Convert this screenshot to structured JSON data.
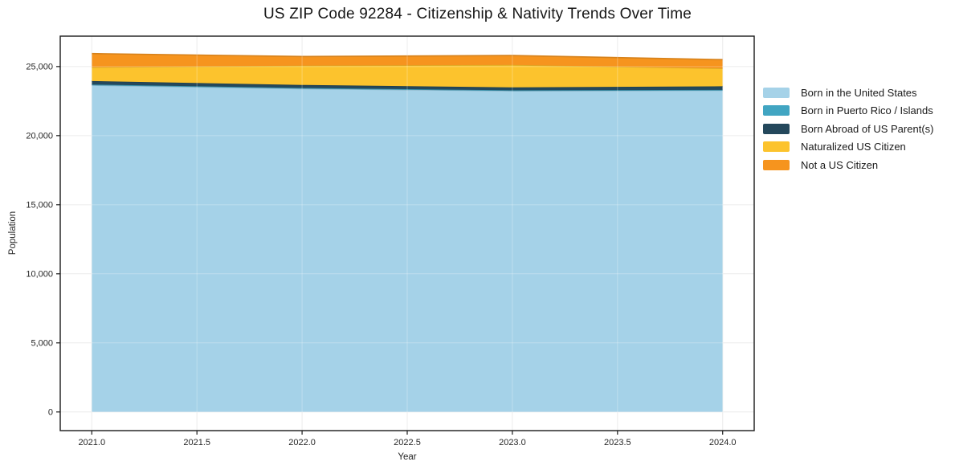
{
  "chart_data": {
    "type": "area",
    "stacked": true,
    "title": "US ZIP Code 92284 - Citizenship & Nativity Trends Over Time",
    "xlabel": "Year",
    "ylabel": "Population",
    "x": [
      2021,
      2022,
      2023,
      2024
    ],
    "series": [
      {
        "name": "Born in the United States",
        "color": "#a5d2e8",
        "values": [
          23650,
          23400,
          23240,
          23280
        ]
      },
      {
        "name": "Born in Puerto Rico / Islands",
        "color": "#41a5c2",
        "values": [
          50,
          50,
          40,
          30
        ]
      },
      {
        "name": "Born Abroad of US Parent(s)",
        "color": "#24485c",
        "values": [
          250,
          220,
          210,
          260
        ]
      },
      {
        "name": "Naturalized US Citizen",
        "color": "#fcc32d",
        "values": [
          1000,
          1400,
          1630,
          1300
        ]
      },
      {
        "name": "Not a US Citizen",
        "color": "#f6941e",
        "values": [
          990,
          660,
          680,
          630
        ]
      }
    ],
    "totals": [
      25940,
      25730,
      25800,
      25500
    ],
    "x_ticks": {
      "values": [
        2021,
        2021.5,
        2022,
        2022.5,
        2023,
        2023.5,
        2024
      ],
      "labels": [
        "2021.0",
        "2021.5",
        "2022.0",
        "2022.5",
        "2023.0",
        "2023.5",
        "2024.0"
      ]
    },
    "y_ticks": {
      "values": [
        0,
        5000,
        10000,
        15000,
        20000,
        25000
      ],
      "labels": [
        "0",
        "5,000",
        "10,000",
        "15,000",
        "20,000",
        "25,000"
      ]
    },
    "xlim": [
      2020.85,
      2024.15
    ],
    "ylim": [
      -1350,
      27200
    ],
    "grid": true,
    "legend_position": "right",
    "frame_color": "#1a1a1a",
    "grid_color": "#e7e7e7",
    "tick_text_color": "#262626"
  }
}
